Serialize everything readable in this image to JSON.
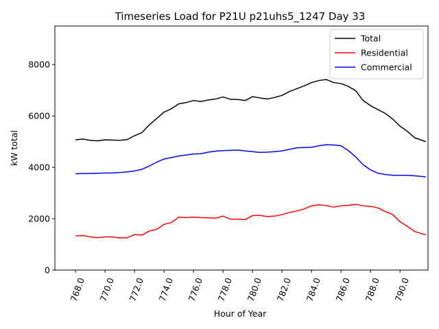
{
  "chart_data": {
    "type": "line",
    "title": "Timeseries Load for P21U p21uhs5_1247  Day 33",
    "xlabel": "Hour of Year",
    "ylabel": "kW total",
    "xlim": [
      766.6,
      791.9
    ],
    "ylim": [
      0,
      9500
    ],
    "xticks": [
      768,
      770,
      772,
      774,
      776,
      778,
      780,
      782,
      784,
      786,
      788,
      790
    ],
    "xtick_labels": [
      "768.0",
      "770.0",
      "772.0",
      "774.0",
      "776.0",
      "778.0",
      "780.0",
      "782.0",
      "784.0",
      "786.0",
      "788.0",
      "790.0"
    ],
    "yticks": [
      0,
      2000,
      4000,
      6000,
      8000
    ],
    "ytick_labels": [
      "0",
      "2000",
      "4000",
      "6000",
      "8000"
    ],
    "legend_position": "top-right",
    "grid": false,
    "x": [
      768.0,
      768.5,
      769.0,
      769.5,
      770.0,
      770.5,
      771.0,
      771.5,
      772.0,
      772.5,
      773.0,
      773.5,
      774.0,
      774.5,
      775.0,
      775.5,
      776.0,
      776.5,
      777.0,
      777.5,
      778.0,
      778.5,
      779.0,
      779.5,
      780.0,
      780.5,
      781.0,
      781.5,
      782.0,
      782.5,
      783.0,
      783.5,
      784.0,
      784.5,
      785.0,
      785.5,
      786.0,
      786.5,
      787.0,
      787.5,
      788.0,
      788.5,
      789.0,
      789.5,
      790.0,
      790.5,
      791.0,
      791.75
    ],
    "series": [
      {
        "name": "Total",
        "color": "#000000",
        "values": [
          5070,
          5100,
          5050,
          5030,
          5070,
          5060,
          5050,
          5080,
          5230,
          5350,
          5650,
          5900,
          6150,
          6280,
          6470,
          6520,
          6600,
          6560,
          6620,
          6660,
          6740,
          6650,
          6640,
          6600,
          6750,
          6700,
          6660,
          6720,
          6800,
          6950,
          7060,
          7170,
          7300,
          7380,
          7420,
          7300,
          7260,
          7150,
          6980,
          6600,
          6400,
          6250,
          6100,
          5880,
          5600,
          5400,
          5150,
          5000
        ]
      },
      {
        "name": "Residential",
        "color": "#ff0000",
        "values": [
          1330,
          1340,
          1290,
          1260,
          1290,
          1290,
          1250,
          1260,
          1380,
          1360,
          1520,
          1580,
          1780,
          1850,
          2060,
          2040,
          2060,
          2040,
          2030,
          2020,
          2100,
          1980,
          1980,
          1960,
          2120,
          2130,
          2080,
          2100,
          2160,
          2240,
          2300,
          2380,
          2500,
          2540,
          2510,
          2450,
          2500,
          2520,
          2560,
          2500,
          2480,
          2420,
          2280,
          2160,
          1880,
          1700,
          1500,
          1370
        ]
      },
      {
        "name": "Commercial",
        "color": "#0000ff",
        "values": [
          3750,
          3760,
          3760,
          3770,
          3780,
          3780,
          3800,
          3820,
          3860,
          3920,
          4050,
          4200,
          4320,
          4380,
          4440,
          4480,
          4520,
          4530,
          4590,
          4630,
          4650,
          4660,
          4670,
          4640,
          4610,
          4580,
          4590,
          4610,
          4640,
          4700,
          4760,
          4770,
          4780,
          4840,
          4880,
          4870,
          4840,
          4650,
          4400,
          4100,
          3900,
          3770,
          3720,
          3690,
          3690,
          3690,
          3670,
          3630
        ]
      }
    ]
  }
}
